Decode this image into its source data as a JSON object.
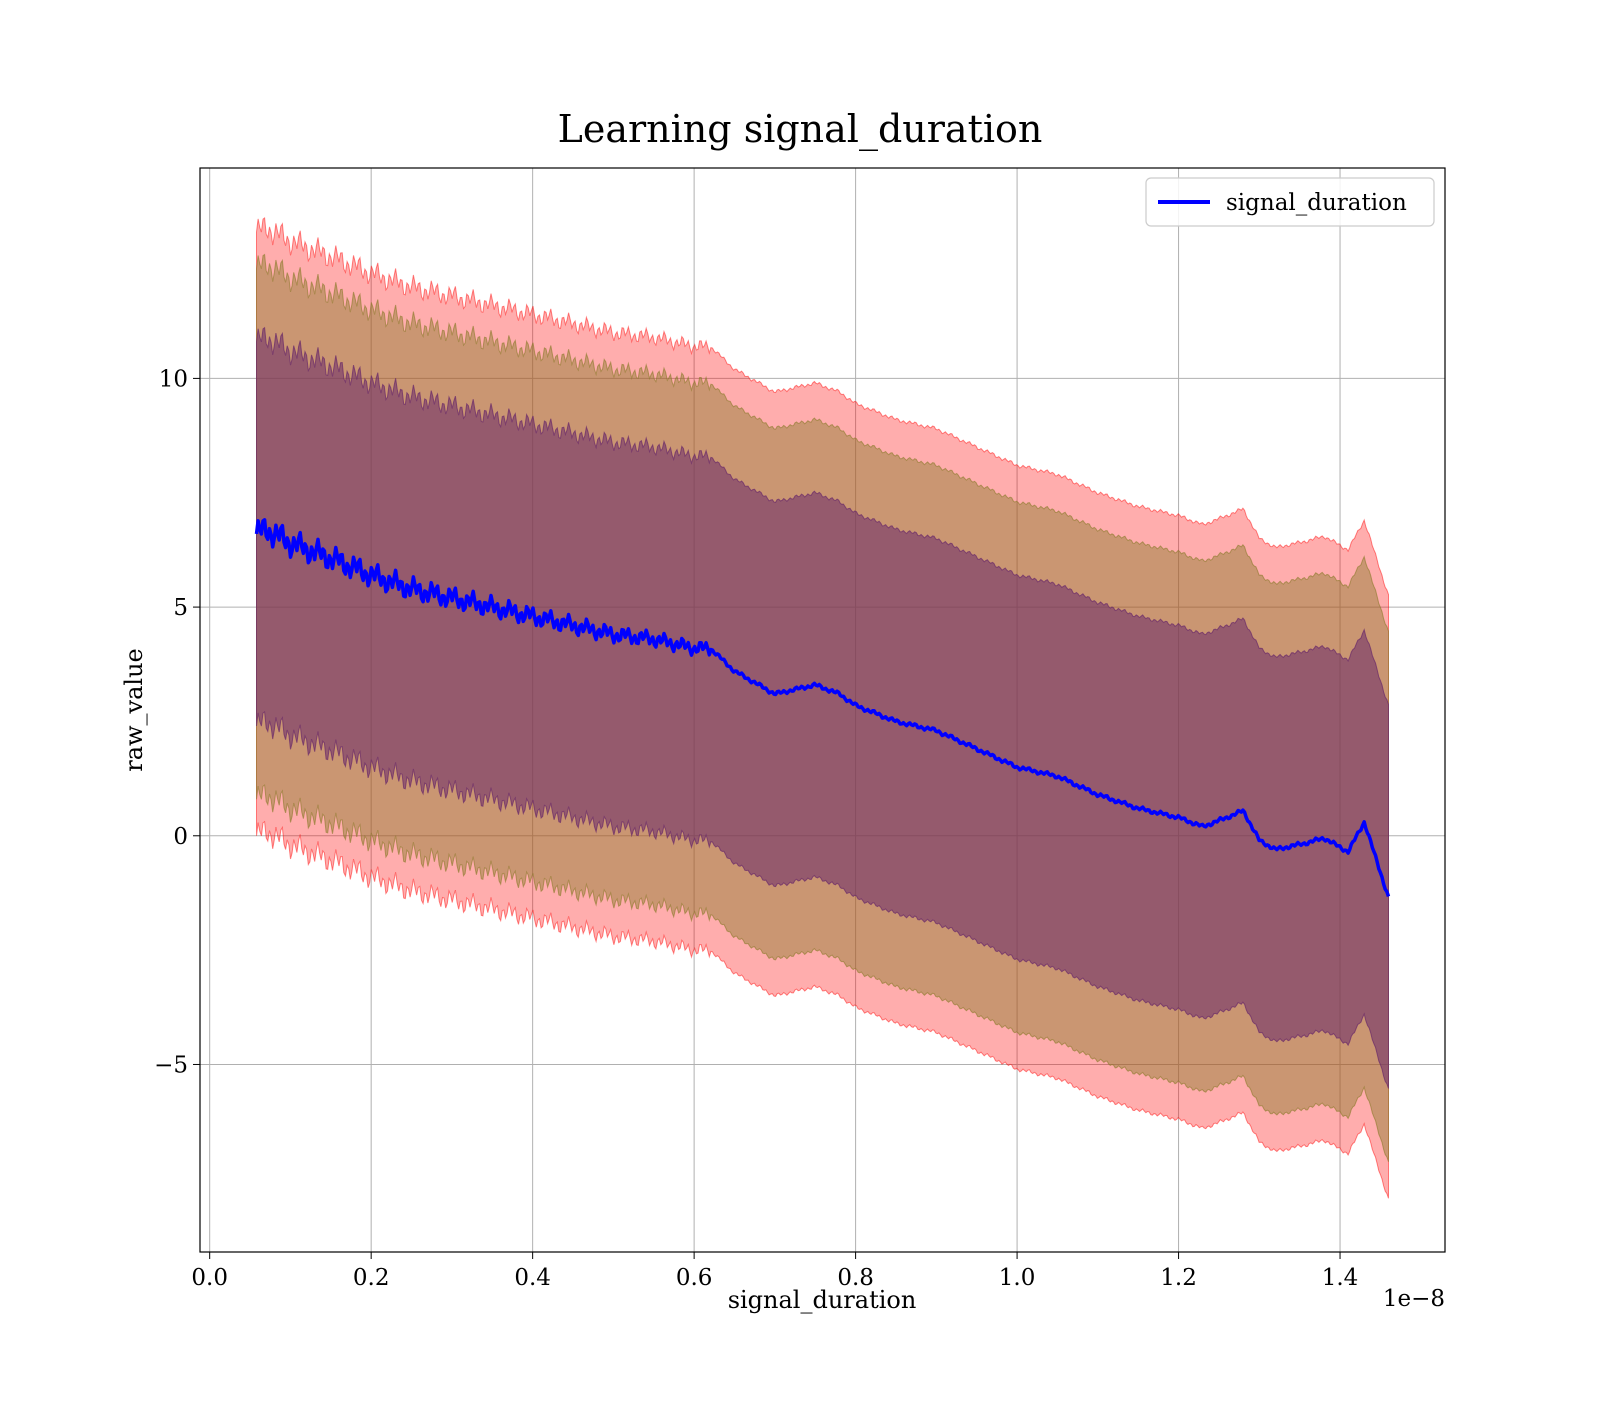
{
  "chart_data": {
    "type": "line",
    "title": "Learning signal_duration",
    "xlabel": "signal_duration",
    "ylabel": "raw_value",
    "x_offset_text": "1e−8",
    "xlim": [
      -0.012,
      1.53
    ],
    "ylim": [
      -9.1,
      14.6
    ],
    "x_ticks": [
      0.0,
      0.2,
      0.4,
      0.6,
      0.8,
      1.0,
      1.2,
      1.4
    ],
    "x_tick_labels": [
      "0.0",
      "0.2",
      "0.4",
      "0.6",
      "0.8",
      "1.0",
      "1.2",
      "1.4"
    ],
    "y_ticks": [
      -5,
      0,
      5,
      10
    ],
    "y_tick_labels": [
      "−5",
      "0",
      "5",
      "10"
    ],
    "grid": true,
    "legend_position": "top-right",
    "colors": {
      "line": "#0000ff",
      "band_outer": "#ff0000",
      "band_middle": "#8a7a2a",
      "band_inner": "#6a2a6a"
    },
    "band_halfwidths": {
      "inner": 4.2,
      "middle": 5.8,
      "outer": 6.6
    },
    "series": [
      {
        "name": "signal_duration",
        "x": [
          0.058,
          0.07,
          0.1,
          0.13,
          0.16,
          0.2,
          0.25,
          0.3,
          0.35,
          0.4,
          0.45,
          0.5,
          0.55,
          0.6,
          0.62,
          0.65,
          0.7,
          0.75,
          0.78,
          0.8,
          0.85,
          0.9,
          0.95,
          1.0,
          1.05,
          1.1,
          1.15,
          1.2,
          1.23,
          1.26,
          1.28,
          1.3,
          1.32,
          1.36,
          1.38,
          1.41,
          1.43,
          1.46
        ],
        "y": [
          6.6,
          6.7,
          6.4,
          6.2,
          6.0,
          5.7,
          5.4,
          5.2,
          5.0,
          4.8,
          4.6,
          4.4,
          4.3,
          4.1,
          4.1,
          3.6,
          3.1,
          3.3,
          3.1,
          2.85,
          2.5,
          2.3,
          1.9,
          1.5,
          1.3,
          0.9,
          0.6,
          0.4,
          0.2,
          0.4,
          0.55,
          -0.1,
          -0.3,
          -0.15,
          -0.05,
          -0.35,
          0.3,
          -1.35
        ]
      }
    ]
  }
}
